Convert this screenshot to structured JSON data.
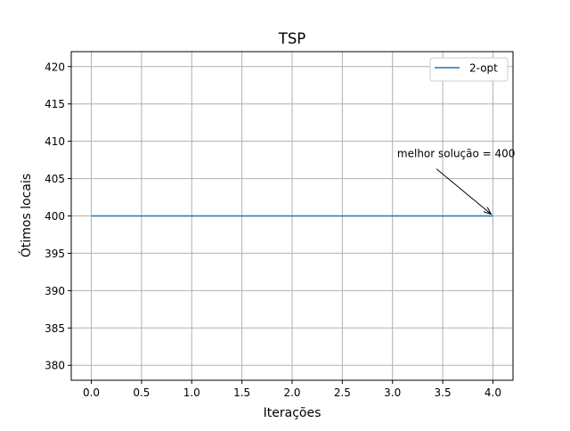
{
  "chart_data": {
    "type": "line",
    "title": "TSP",
    "xlabel": "Iterações",
    "ylabel": "Ótimos locais",
    "xlim": [
      -0.2,
      4.2
    ],
    "ylim": [
      378,
      422
    ],
    "xticks": [
      0.0,
      0.5,
      1.0,
      1.5,
      2.0,
      2.5,
      3.0,
      3.5,
      4.0
    ],
    "xtick_labels": [
      "0.0",
      "0.5",
      "1.0",
      "1.5",
      "2.0",
      "2.5",
      "3.0",
      "3.5",
      "4.0"
    ],
    "yticks": [
      380,
      385,
      390,
      395,
      400,
      405,
      410,
      415,
      420
    ],
    "ytick_labels": [
      "380",
      "385",
      "390",
      "395",
      "400",
      "405",
      "410",
      "415",
      "420"
    ],
    "grid": true,
    "legend_position": "top-right",
    "series": [
      {
        "name": "2-opt",
        "color": "#1f77b4",
        "x": [
          0,
          1,
          2,
          3,
          4
        ],
        "y": [
          400,
          400,
          400,
          400,
          400
        ]
      }
    ],
    "annotations": [
      {
        "text": "melhor solução = 400",
        "point": [
          4,
          400
        ],
        "text_anchor_at": [
          3.35,
          407.5
        ]
      }
    ]
  }
}
